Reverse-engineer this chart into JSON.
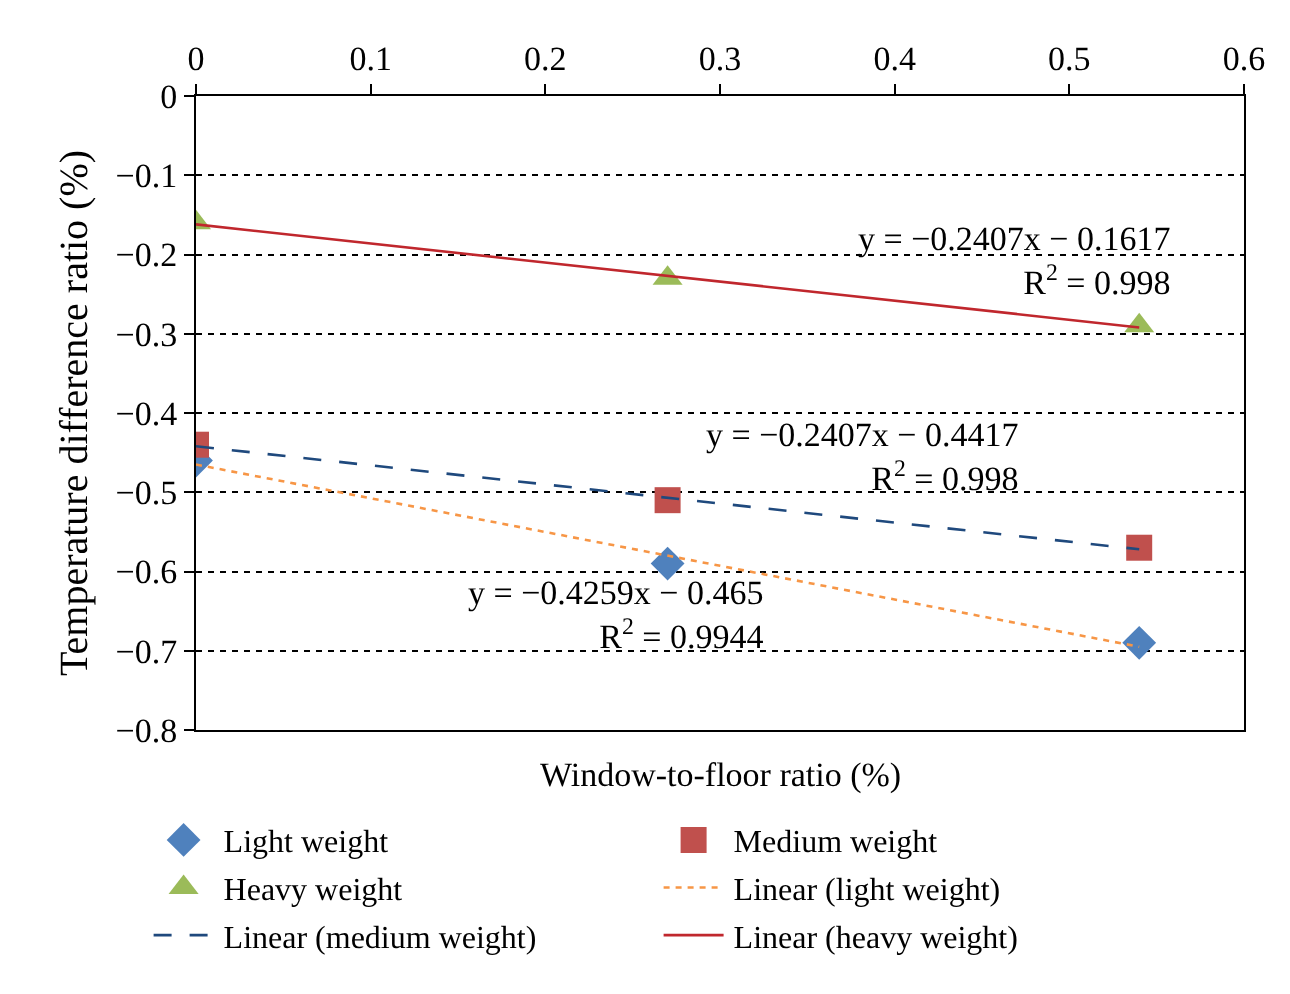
{
  "chart_data": {
    "type": "scatter",
    "xlabel": "Window-to-floor ratio (%)",
    "ylabel": "Temperature difference ratio (%)",
    "xlim": [
      0,
      0.6
    ],
    "xticks": [
      0,
      0.1,
      0.2,
      0.3,
      0.4,
      0.5,
      0.6
    ],
    "ylim": [
      -0.8,
      0
    ],
    "yticks": [
      -0.8,
      -0.7,
      -0.6,
      -0.5,
      -0.4,
      -0.3,
      -0.2,
      -0.1,
      0
    ],
    "grid": "y",
    "legend": "bottom",
    "series": [
      {
        "name": "Light weight",
        "marker": "diamond",
        "color": "#4f81bd",
        "x": [
          0,
          0.27,
          0.54
        ],
        "values": [
          -0.46,
          -0.59,
          -0.69
        ]
      },
      {
        "name": "Medium weight",
        "marker": "square",
        "color": "#c0504d",
        "x": [
          0,
          0.27,
          0.54
        ],
        "values": [
          -0.44,
          -0.51,
          -0.57
        ]
      },
      {
        "name": "Heavy weight",
        "marker": "triangle",
        "color": "#9bbb59",
        "x": [
          0,
          0.27,
          0.54
        ],
        "values": [
          -0.16,
          -0.23,
          -0.29
        ]
      },
      {
        "name": "Linear (light weight)",
        "type": "line",
        "line_style": "dotted",
        "color": "#f79646",
        "x": [
          0,
          0.54
        ],
        "values": [
          -0.465,
          -0.695
        ]
      },
      {
        "name": "Linear (medium weight)",
        "type": "line",
        "line_style": "dashed",
        "color": "#1f497d",
        "x": [
          0,
          0.54
        ],
        "values": [
          -0.442,
          -0.572
        ]
      },
      {
        "name": "Linear (heavy weight)",
        "type": "line",
        "line_style": "solid",
        "color": "#c0272d",
        "x": [
          0,
          0.54
        ],
        "values": [
          -0.162,
          -0.292
        ]
      }
    ],
    "annotations": [
      "y = −0.2407x − 0.1617\nR$^{2}$ = 0.998",
      "y = −0.2407x − 0.4417\nR$^{2}$ = 0.998",
      "y = −0.4259x − 0.465\nR$^{2}$ = 0.9944"
    ]
  }
}
